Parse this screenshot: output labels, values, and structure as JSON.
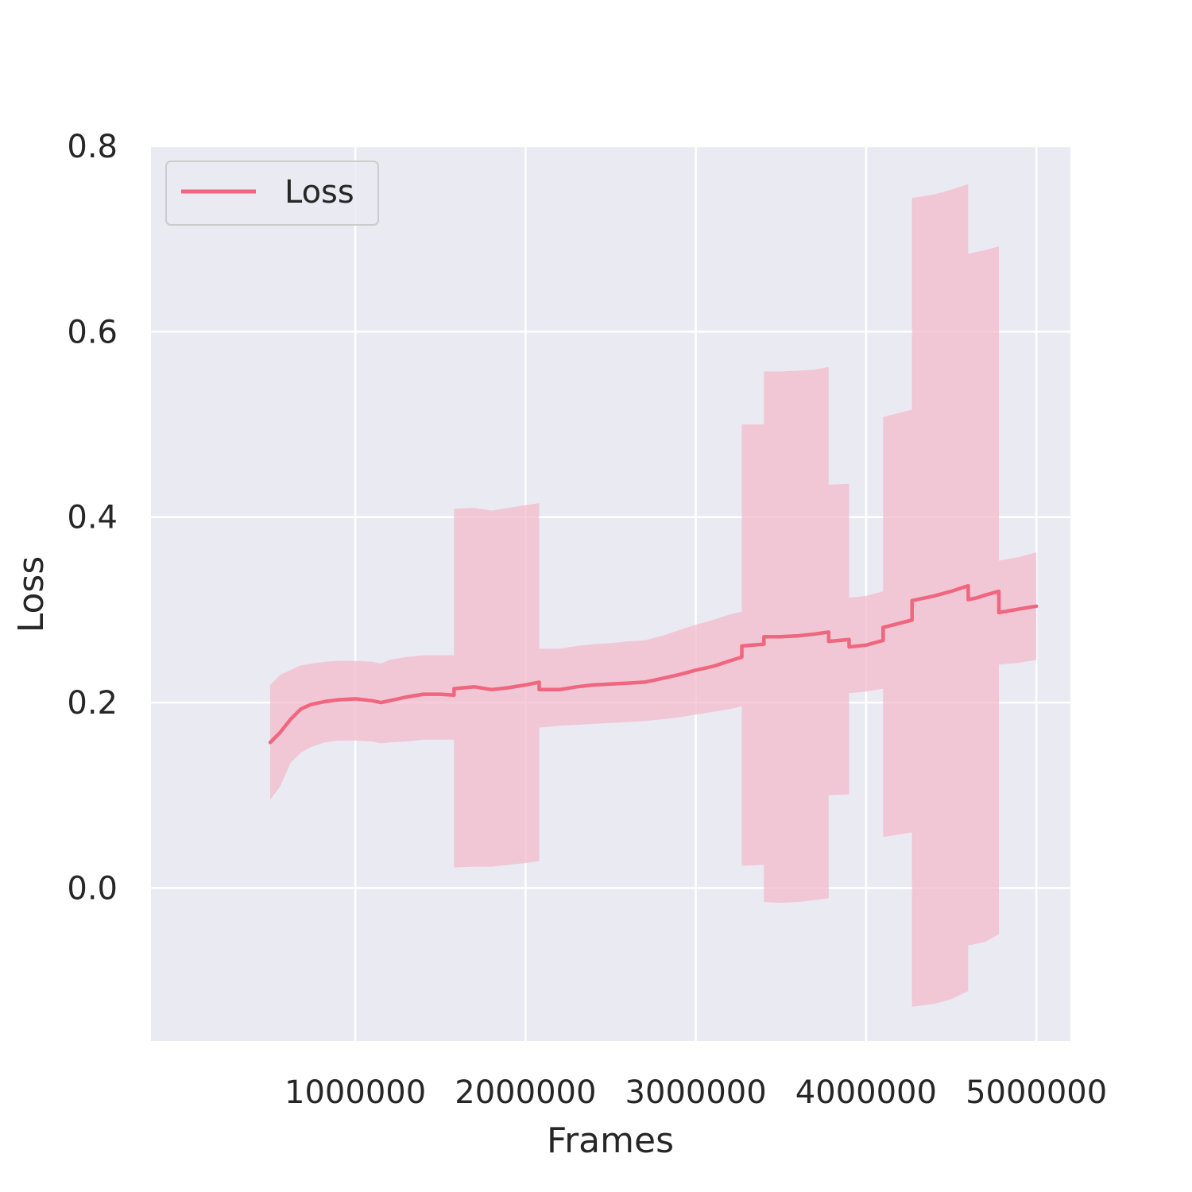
{
  "chart_data": {
    "type": "line",
    "xlabel": "Frames",
    "ylabel": "Loss",
    "xlim": [
      -200000,
      5200000
    ],
    "ylim": [
      -0.165,
      0.8
    ],
    "x_ticks": [
      1000000,
      2000000,
      3000000,
      4000000,
      5000000
    ],
    "x_tick_labels": [
      "1000000",
      "2000000",
      "3000000",
      "4000000",
      "5000000"
    ],
    "y_ticks": [
      0.0,
      0.2,
      0.4,
      0.6,
      0.8
    ],
    "y_tick_labels": [
      "0.0",
      "0.2",
      "0.4",
      "0.6",
      "0.8"
    ],
    "grid": true,
    "legend": {
      "position": "top-left",
      "entries": [
        "Loss"
      ]
    },
    "colors": {
      "line": "#f0667f",
      "band": "#f3b6c9",
      "background": "#eaeaf2",
      "grid": "#ffffff"
    },
    "series": [
      {
        "name": "Loss",
        "x": [
          500000,
          560000,
          620000,
          680000,
          740000,
          820000,
          900000,
          1000000,
          1100000,
          1150000,
          1200000,
          1300000,
          1400000,
          1500000,
          1580000,
          1580001,
          1700000,
          1800000,
          1900000,
          2000000,
          2080000,
          2080001,
          2200000,
          2300000,
          2400000,
          2500000,
          2600000,
          2700000,
          2800000,
          2900000,
          3000000,
          3100000,
          3200000,
          3270000,
          3270001,
          3400000,
          3400001,
          3500000,
          3600000,
          3700000,
          3780000,
          3780001,
          3900000,
          3900001,
          4000000,
          4100000,
          4100001,
          4270000,
          4270001,
          4400000,
          4500000,
          4600000,
          4600001,
          4650000,
          4700000,
          4780000,
          4780001,
          4900000,
          5000000
        ],
        "y": [
          0.157,
          0.168,
          0.182,
          0.193,
          0.198,
          0.201,
          0.203,
          0.204,
          0.202,
          0.2,
          0.202,
          0.206,
          0.209,
          0.209,
          0.208,
          0.215,
          0.217,
          0.214,
          0.216,
          0.219,
          0.222,
          0.214,
          0.214,
          0.217,
          0.219,
          0.22,
          0.221,
          0.222,
          0.226,
          0.23,
          0.235,
          0.239,
          0.245,
          0.249,
          0.261,
          0.263,
          0.271,
          0.271,
          0.272,
          0.274,
          0.276,
          0.266,
          0.268,
          0.26,
          0.262,
          0.267,
          0.281,
          0.289,
          0.31,
          0.315,
          0.32,
          0.326,
          0.311,
          0.313,
          0.316,
          0.32,
          0.297,
          0.301,
          0.304
        ],
        "lower": [
          0.095,
          0.11,
          0.135,
          0.146,
          0.152,
          0.157,
          0.159,
          0.159,
          0.158,
          0.156,
          0.157,
          0.158,
          0.16,
          0.16,
          0.16,
          0.022,
          0.023,
          0.023,
          0.025,
          0.027,
          0.029,
          0.173,
          0.175,
          0.176,
          0.177,
          0.178,
          0.179,
          0.18,
          0.182,
          0.184,
          0.187,
          0.19,
          0.193,
          0.196,
          0.024,
          0.025,
          -0.015,
          -0.016,
          -0.015,
          -0.013,
          -0.011,
          0.1,
          0.101,
          0.21,
          0.212,
          0.215,
          0.055,
          0.06,
          -0.128,
          -0.125,
          -0.12,
          -0.111,
          -0.062,
          -0.06,
          -0.058,
          -0.05,
          0.241,
          0.243,
          0.246
        ],
        "upper": [
          0.219,
          0.23,
          0.235,
          0.24,
          0.242,
          0.244,
          0.245,
          0.245,
          0.244,
          0.242,
          0.246,
          0.249,
          0.251,
          0.251,
          0.251,
          0.409,
          0.41,
          0.407,
          0.41,
          0.413,
          0.415,
          0.258,
          0.258,
          0.261,
          0.263,
          0.264,
          0.266,
          0.267,
          0.272,
          0.278,
          0.284,
          0.289,
          0.295,
          0.298,
          0.5,
          0.5,
          0.557,
          0.557,
          0.558,
          0.559,
          0.562,
          0.435,
          0.436,
          0.313,
          0.315,
          0.32,
          0.508,
          0.516,
          0.744,
          0.748,
          0.753,
          0.759,
          0.684,
          0.686,
          0.688,
          0.692,
          0.353,
          0.357,
          0.362
        ]
      }
    ]
  }
}
